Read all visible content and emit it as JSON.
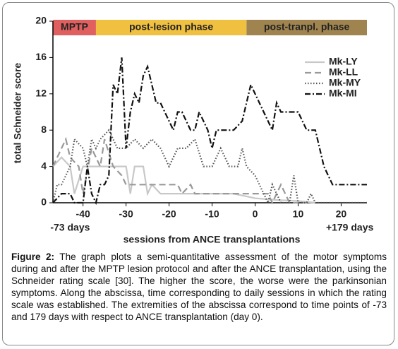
{
  "chart_data": {
    "type": "line",
    "x_label": "sessions from ANCE transplantations",
    "y_label": "total Schneider score",
    "xlim": [
      -47,
      26
    ],
    "ylim": [
      0,
      20
    ],
    "xticks": [
      -40,
      -30,
      -20,
      -10,
      0,
      10,
      20
    ],
    "yticks": [
      0,
      4,
      8,
      12,
      16,
      20
    ],
    "annotations": [
      {
        "text": "-73 days",
        "x": -43
      },
      {
        "text": "+179 days",
        "x": 22
      }
    ],
    "phases": [
      {
        "label": "MPTP",
        "start": -47,
        "end": -37,
        "color": "#e06060"
      },
      {
        "label": "post-lesion phase",
        "start": -37,
        "end": -2,
        "color": "#f0c040"
      },
      {
        "label": "post-tranpl. phase",
        "start": -2,
        "end": 26,
        "color": "#a08450"
      }
    ],
    "legend": "upper right",
    "series": [
      {
        "name": "Mk-LY",
        "color": "#c8c8c8",
        "style": "solid",
        "x": [
          -47,
          -45,
          -43,
          -42,
          -40,
          -38,
          -36,
          -34,
          -32,
          -30,
          -29,
          -28,
          -26,
          -25,
          -24,
          -22,
          -20,
          -18,
          -16,
          -14,
          -10,
          -5,
          0,
          5,
          10,
          14
        ],
        "values": [
          4,
          5,
          4,
          1,
          4,
          4,
          4,
          4,
          4,
          4,
          1,
          4,
          4,
          1,
          2,
          1,
          1,
          1,
          1,
          1,
          1,
          1,
          0.5,
          0.3,
          0.2,
          0
        ]
      },
      {
        "name": "Mk-LL",
        "color": "#999999",
        "style": "dashed",
        "x": [
          -47,
          -45,
          -44,
          -43,
          -41,
          -40,
          -38,
          -36,
          -35,
          -33,
          -31,
          -30,
          -28,
          -26,
          -24,
          -22,
          -20,
          -18,
          -17,
          -15,
          -14,
          -10,
          -5,
          0,
          3,
          4,
          6,
          8,
          12
        ],
        "values": [
          4,
          6,
          7,
          5,
          4,
          1,
          6,
          4,
          7,
          4,
          3,
          2,
          2,
          2,
          2,
          2,
          2,
          2,
          1,
          2,
          1,
          1,
          1,
          1,
          1,
          0,
          2,
          0,
          0
        ]
      },
      {
        "name": "Mk-MY",
        "color": "#555555",
        "style": "dotted",
        "x": [
          -47,
          -46,
          -45,
          -43,
          -42,
          -40,
          -39,
          -38,
          -37,
          -36,
          -34,
          -32,
          -30,
          -28,
          -26,
          -24,
          -22,
          -20,
          -18,
          -16,
          -14,
          -12,
          -10,
          -8,
          -6,
          -4,
          -3,
          -2,
          0,
          2,
          3,
          4,
          6,
          8,
          9,
          10,
          12,
          13,
          14,
          26
        ],
        "values": [
          0,
          2,
          2,
          4,
          7,
          6,
          4,
          7,
          6,
          7,
          8,
          6,
          6,
          7,
          6,
          7,
          6,
          4,
          6,
          6,
          7,
          4,
          4,
          6,
          4,
          4,
          6,
          4,
          3,
          1,
          0,
          2,
          0,
          0,
          3,
          0,
          0,
          1,
          0,
          0
        ]
      },
      {
        "name": "Mk-MI",
        "color": "#111111",
        "style": "dashdot",
        "x": [
          -47,
          -45,
          -43,
          -42,
          -40,
          -39,
          -38,
          -37,
          -36,
          -35,
          -34,
          -33,
          -32,
          -31,
          -30,
          -29,
          -28,
          -27,
          -26,
          -25,
          -24,
          -23,
          -22,
          -21,
          -19,
          -18,
          -17,
          -15,
          -14,
          -13,
          -12,
          -11,
          -10,
          -9,
          -7,
          -5,
          -3,
          -1,
          0,
          2,
          4,
          5,
          6,
          9,
          10,
          11,
          12,
          14,
          16,
          18,
          20,
          26
        ],
        "values": [
          0,
          1,
          1,
          0,
          0,
          4,
          1,
          0,
          2,
          2,
          3,
          13,
          12,
          16,
          6,
          10,
          12,
          11,
          14,
          15,
          13,
          11,
          11,
          10,
          8,
          10,
          10,
          8,
          8,
          10,
          9,
          8,
          6,
          8,
          8,
          8,
          9,
          13,
          12,
          10,
          8,
          11,
          10,
          10,
          10,
          9,
          8,
          8,
          4,
          2,
          2,
          2
        ]
      }
    ]
  },
  "caption": {
    "label": "Figure 2:",
    "text": "The graph plots a semi-quantitative assessment of the motor symptoms during and after the MPTP lesion protocol and after the ANCE transplantation, using the Schneider rating scale [30]. The higher the score, the worse were the parkinsonian symptoms. Along the abscissa, time corresponding to daily sessions in which the rating scale was established. The extremities of the abscissa correspond to time points of -73 and 179 days with respect to ANCE transplantation (day 0)."
  }
}
